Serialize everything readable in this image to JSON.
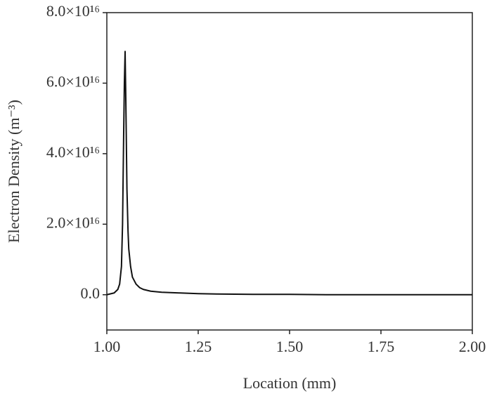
{
  "chart_data": {
    "type": "line",
    "xlabel": "Location (mm)",
    "ylabel": "Electron Density (m⁻³)",
    "x": [
      1.0,
      1.02,
      1.03,
      1.035,
      1.04,
      1.043,
      1.046,
      1.048,
      1.05,
      1.052,
      1.055,
      1.058,
      1.06,
      1.065,
      1.07,
      1.08,
      1.09,
      1.1,
      1.12,
      1.15,
      1.2,
      1.25,
      1.3,
      1.4,
      1.5,
      1.6,
      1.7,
      1.8,
      1.9,
      2.0
    ],
    "values": [
      0,
      500000000000000.0,
      1500000000000000.0,
      3000000000000000.0,
      8000000000000000.0,
      2e+16,
      4.5e+16,
      6e+16,
      6.9e+16,
      5.5e+16,
      3e+16,
      1.8e+16,
      1.3e+16,
      8000000000000000.0,
      5000000000000000.0,
      3000000000000000.0,
      2000000000000000.0,
      1500000000000000.0,
      1000000000000000.0,
      700000000000000.0,
      500000000000000.0,
      300000000000000.0,
      200000000000000.0,
      100000000000000.0,
      100000000000000.0,
      0,
      0,
      0,
      0,
      0
    ],
    "color": "#111111",
    "xlim": [
      1.0,
      2.0
    ],
    "xticks": [
      {
        "value": 1.0,
        "label": "1.00"
      },
      {
        "value": 1.25,
        "label": "1.25"
      },
      {
        "value": 1.5,
        "label": "1.50"
      },
      {
        "value": 1.75,
        "label": "1.75"
      },
      {
        "value": 2.0,
        "label": "2.00"
      }
    ],
    "ylim": [
      -1e+16,
      8e+16
    ],
    "yticks": [
      {
        "value": 0,
        "label": "0.0"
      },
      {
        "value": 2e+16,
        "label": "2.0×10¹⁶"
      },
      {
        "value": 4e+16,
        "label": "4.0×10¹⁶"
      },
      {
        "value": 6e+16,
        "label": "6.0×10¹⁶"
      },
      {
        "value": 8e+16,
        "label": "8.0×10¹⁶"
      }
    ]
  }
}
